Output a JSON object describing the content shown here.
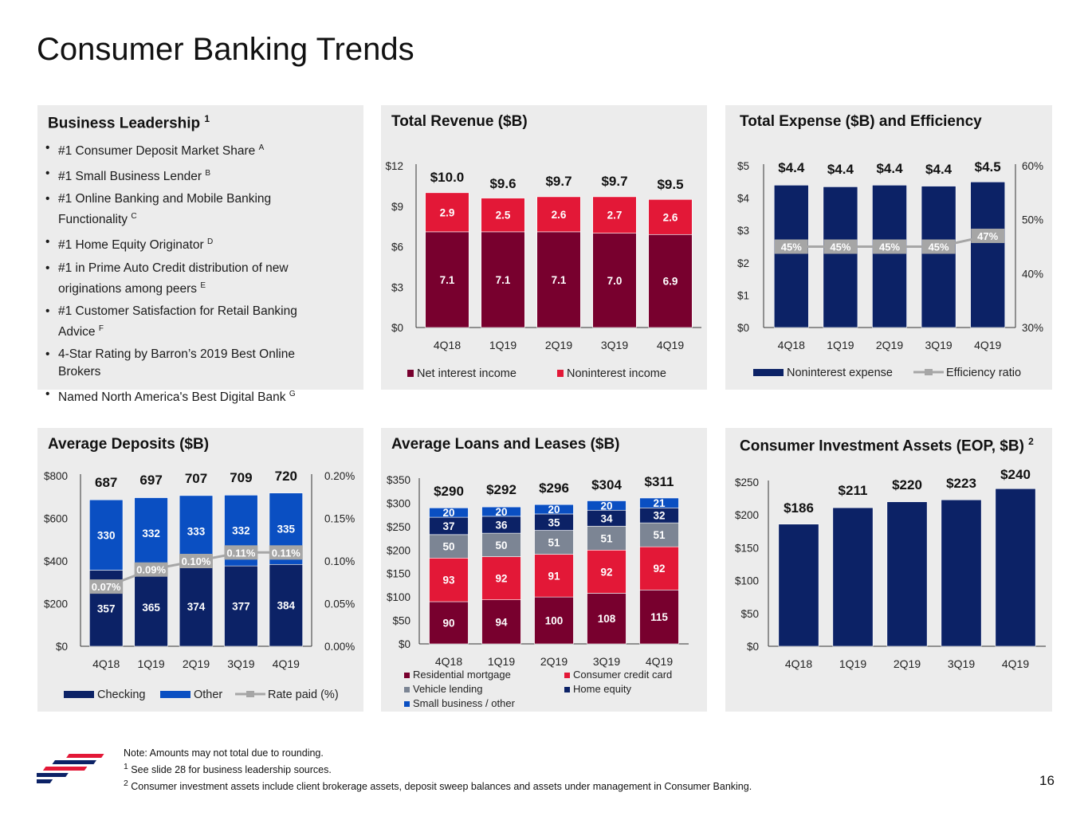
{
  "page": {
    "title": "Consumer Banking Trends",
    "page_number": "16"
  },
  "leadership": {
    "title": "Business Leadership",
    "title_sup": "1",
    "items": [
      {
        "text": "#1 Consumer Deposit Market Share",
        "sup": "A"
      },
      {
        "text": "#1 Small Business Lender",
        "sup": "B"
      },
      {
        "text": "#1 Online Banking and Mobile Banking Functionality",
        "sup": "C"
      },
      {
        "text": "#1 Home Equity Originator",
        "sup": "D"
      },
      {
        "text": "#1 in Prime Auto Credit distribution of new originations among peers",
        "sup": "E"
      },
      {
        "text": "#1 Customer Satisfaction for Retail Banking Advice",
        "sup": "F"
      },
      {
        "text": "4-Star Rating by Barron’s 2019 Best Online Brokers",
        "sup": ""
      },
      {
        "text": "Named North America's Best Digital Bank",
        "sup": "G"
      }
    ]
  },
  "colors": {
    "navy": "#0c2266",
    "maroon": "#78002e",
    "red": "#e31837",
    "gray": "#7c8594",
    "blue": "#0a4fc2",
    "line": "#a6a6a6",
    "panel": "#ececec"
  },
  "chart_data": [
    {
      "id": "revenue",
      "type": "bar",
      "title": "Total Revenue ($B)",
      "categories": [
        "4Q18",
        "1Q19",
        "2Q19",
        "3Q19",
        "4Q19"
      ],
      "series": [
        {
          "name": "Net interest income",
          "color": "#78002e",
          "values": [
            7.1,
            7.1,
            7.1,
            7.0,
            6.9
          ],
          "labels": [
            "7.1",
            "7.1",
            "7.1",
            "7.0",
            "6.9"
          ]
        },
        {
          "name": "Noninterest income",
          "color": "#e31837",
          "values": [
            2.9,
            2.5,
            2.6,
            2.7,
            2.6
          ],
          "labels": [
            "2.9",
            "2.5",
            "2.6",
            "2.7",
            "2.6"
          ]
        }
      ],
      "totals": [
        "$10.0",
        "$9.6",
        "$9.7",
        "$9.7",
        "$9.5"
      ],
      "ylim": [
        0,
        12
      ],
      "yticks": [
        0,
        3,
        6,
        9,
        12
      ],
      "ytick_labels": [
        "$0",
        "$3",
        "$6",
        "$9",
        "$12"
      ]
    },
    {
      "id": "expense",
      "type": "bar",
      "title": "Total Expense ($B) and Efficiency",
      "categories": [
        "4Q18",
        "1Q19",
        "2Q19",
        "3Q19",
        "4Q19"
      ],
      "series": [
        {
          "name": "Noninterest expense",
          "color": "#0c2266",
          "values": [
            4.4,
            4.35,
            4.4,
            4.37,
            4.5
          ],
          "labels": [
            "$4.4",
            "$4.4",
            "$4.4",
            "$4.4",
            "$4.5"
          ]
        },
        {
          "name": "Efficiency ratio",
          "type": "line",
          "axis": "right",
          "values": [
            45,
            45,
            45,
            45,
            47
          ],
          "labels": [
            "45%",
            "45%",
            "45%",
            "45%",
            "47%"
          ]
        }
      ],
      "ylim": [
        0,
        5
      ],
      "yticks": [
        0,
        1,
        2,
        3,
        4,
        5
      ],
      "ytick_labels": [
        "$0",
        "$1",
        "$2",
        "$3",
        "$4",
        "$5"
      ],
      "y2lim": [
        30,
        60
      ],
      "y2ticks": [
        30,
        40,
        50,
        60
      ],
      "y2tick_labels": [
        "30%",
        "40%",
        "50%",
        "60%"
      ]
    },
    {
      "id": "deposits",
      "type": "bar",
      "title": "Average Deposits ($B)",
      "categories": [
        "4Q18",
        "1Q19",
        "2Q19",
        "3Q19",
        "4Q19"
      ],
      "series": [
        {
          "name": "Checking",
          "color": "#0c2266",
          "values": [
            357,
            365,
            374,
            377,
            384
          ],
          "labels": [
            "357",
            "365",
            "374",
            "377",
            "384"
          ]
        },
        {
          "name": "Other",
          "color": "#0a4fc2",
          "values": [
            330,
            332,
            333,
            332,
            335
          ],
          "labels": [
            "330",
            "332",
            "333",
            "332",
            "335"
          ]
        },
        {
          "name": "Rate paid (%)",
          "type": "line",
          "axis": "right",
          "values": [
            0.07,
            0.09,
            0.1,
            0.11,
            0.11
          ],
          "labels": [
            "0.07%",
            "0.09%",
            "0.10%",
            "0.11%",
            "0.11%"
          ]
        }
      ],
      "totals": [
        "687",
        "697",
        "707",
        "709",
        "720"
      ],
      "ylim": [
        0,
        800
      ],
      "yticks": [
        0,
        200,
        400,
        600,
        800
      ],
      "ytick_labels": [
        "$0",
        "$200",
        "$400",
        "$600",
        "$800"
      ],
      "y2lim": [
        0,
        0.2
      ],
      "y2ticks": [
        0,
        0.05,
        0.1,
        0.15,
        0.2
      ],
      "y2tick_labels": [
        "0.00%",
        "0.05%",
        "0.10%",
        "0.15%",
        "0.20%"
      ]
    },
    {
      "id": "loans",
      "type": "bar",
      "title": "Average Loans and Leases ($B)",
      "categories": [
        "4Q18",
        "1Q19",
        "2Q19",
        "3Q19",
        "4Q19"
      ],
      "series": [
        {
          "name": "Residential mortgage",
          "color": "#78002e",
          "values": [
            90,
            94,
            100,
            108,
            115
          ],
          "labels": [
            "90",
            "94",
            "100",
            "108",
            "115"
          ]
        },
        {
          "name": "Consumer credit card",
          "color": "#e31837",
          "values": [
            93,
            92,
            91,
            92,
            92
          ],
          "labels": [
            "93",
            "92",
            "91",
            "92",
            "92"
          ]
        },
        {
          "name": "Vehicle lending",
          "color": "#7c8594",
          "values": [
            50,
            50,
            51,
            51,
            51
          ],
          "labels": [
            "50",
            "50",
            "51",
            "51",
            "51"
          ]
        },
        {
          "name": "Home equity",
          "color": "#0c2266",
          "values": [
            37,
            36,
            35,
            34,
            32
          ],
          "labels": [
            "37",
            "36",
            "35",
            "34",
            "32"
          ]
        },
        {
          "name": "Small business / other",
          "color": "#0a4fc2",
          "values": [
            20,
            20,
            20,
            20,
            21
          ],
          "labels": [
            "20",
            "20",
            "20",
            "20",
            "21"
          ]
        }
      ],
      "totals": [
        "$290",
        "$292",
        "$296",
        "$304",
        "$311"
      ],
      "ylim": [
        0,
        350
      ],
      "yticks": [
        0,
        50,
        100,
        150,
        200,
        250,
        300,
        350
      ],
      "ytick_labels": [
        "$0",
        "$50",
        "$100",
        "$150",
        "$200",
        "$250",
        "$300",
        "$350"
      ]
    },
    {
      "id": "investment",
      "type": "bar",
      "title": "Consumer Investment Assets (EOP, $B)",
      "title_sup": "2",
      "categories": [
        "4Q18",
        "1Q19",
        "2Q19",
        "3Q19",
        "4Q19"
      ],
      "series": [
        {
          "color": "#0c2266",
          "values": [
            186,
            211,
            220,
            223,
            240
          ],
          "labels": [
            "$186",
            "$211",
            "$220",
            "$223",
            "$240"
          ]
        }
      ],
      "ylim": [
        0,
        250
      ],
      "yticks": [
        0,
        50,
        100,
        150,
        200,
        250
      ],
      "ytick_labels": [
        "$0",
        "$50",
        "$100",
        "$150",
        "$200",
        "$250"
      ]
    }
  ],
  "footer": {
    "note": "Note: Amounts may not total due to rounding.",
    "fn1_num": "1",
    "fn1": "See slide 28 for business leadership sources.",
    "fn2_num": "2",
    "fn2": "Consumer investment assets include client brokerage assets, deposit sweep balances and assets under management in Consumer Banking."
  }
}
